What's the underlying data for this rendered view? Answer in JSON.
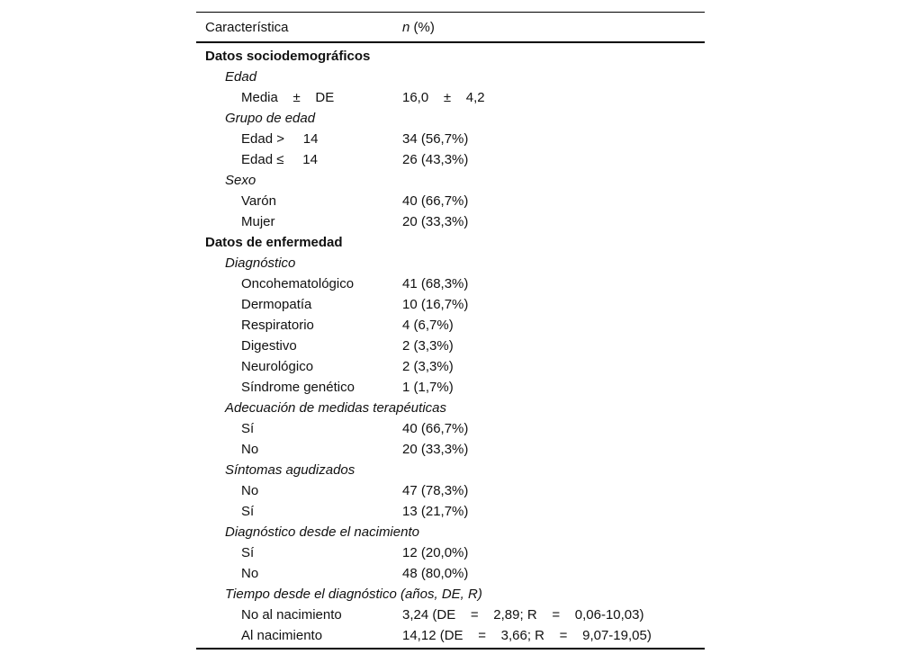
{
  "table": {
    "header": {
      "col1": "Característica",
      "col2_italic": "n",
      "col2_rest": " (%)"
    },
    "rows": [
      {
        "type": "section",
        "label": "Datos sociodemográficos",
        "value": ""
      },
      {
        "type": "subsection",
        "label": "Edad",
        "value": ""
      },
      {
        "type": "item",
        "label": "Media    ±    DE",
        "value": "16,0    ±    4,2"
      },
      {
        "type": "subsection",
        "label": "Grupo de edad",
        "value": ""
      },
      {
        "type": "item",
        "label": "Edad >     14",
        "value": "34 (56,7%)"
      },
      {
        "type": "item",
        "label": "Edad ≤     14",
        "value": "26 (43,3%)"
      },
      {
        "type": "subsection",
        "label": "Sexo",
        "value": ""
      },
      {
        "type": "item",
        "label": "Varón",
        "value": "40 (66,7%)"
      },
      {
        "type": "item",
        "label": "Mujer",
        "value": "20 (33,3%)"
      },
      {
        "type": "section",
        "label": "Datos de enfermedad",
        "value": ""
      },
      {
        "type": "subsection",
        "label": "Diagnóstico",
        "value": ""
      },
      {
        "type": "item",
        "label": "Oncohematológico",
        "value": "41 (68,3%)"
      },
      {
        "type": "item",
        "label": "Dermopatía",
        "value": "10 (16,7%)"
      },
      {
        "type": "item",
        "label": "Respiratorio",
        "value": "4 (6,7%)"
      },
      {
        "type": "item",
        "label": "Digestivo",
        "value": "2 (3,3%)"
      },
      {
        "type": "item",
        "label": "Neurológico",
        "value": "2 (3,3%)"
      },
      {
        "type": "item",
        "label": "Síndrome genético",
        "value": "1 (1,7%)"
      },
      {
        "type": "subsection",
        "label": "Adecuación de medidas terapéuticas",
        "value": ""
      },
      {
        "type": "item",
        "label": "Sí",
        "value": "40 (66,7%)"
      },
      {
        "type": "item",
        "label": "No",
        "value": "20 (33,3%)"
      },
      {
        "type": "subsection",
        "label": "Síntomas agudizados",
        "value": ""
      },
      {
        "type": "item",
        "label": "No",
        "value": "47 (78,3%)"
      },
      {
        "type": "item",
        "label": "Sí",
        "value": "13 (21,7%)"
      },
      {
        "type": "subsection",
        "label": "Diagnóstico desde el nacimiento",
        "value": ""
      },
      {
        "type": "item",
        "label": "Sí",
        "value": "12 (20,0%)"
      },
      {
        "type": "item",
        "label": "No",
        "value": "48 (80,0%)"
      },
      {
        "type": "subsection",
        "label": "Tiempo desde el diagnóstico (años, DE, R)",
        "value": ""
      },
      {
        "type": "item",
        "label": "No al nacimiento",
        "value": "3,24 (DE    =    2,89; R    =    0,06-10,03)"
      },
      {
        "type": "item",
        "label": "Al nacimiento",
        "value": "14,12 (DE    =    3,66; R    =    9,07-19,05)"
      }
    ]
  }
}
